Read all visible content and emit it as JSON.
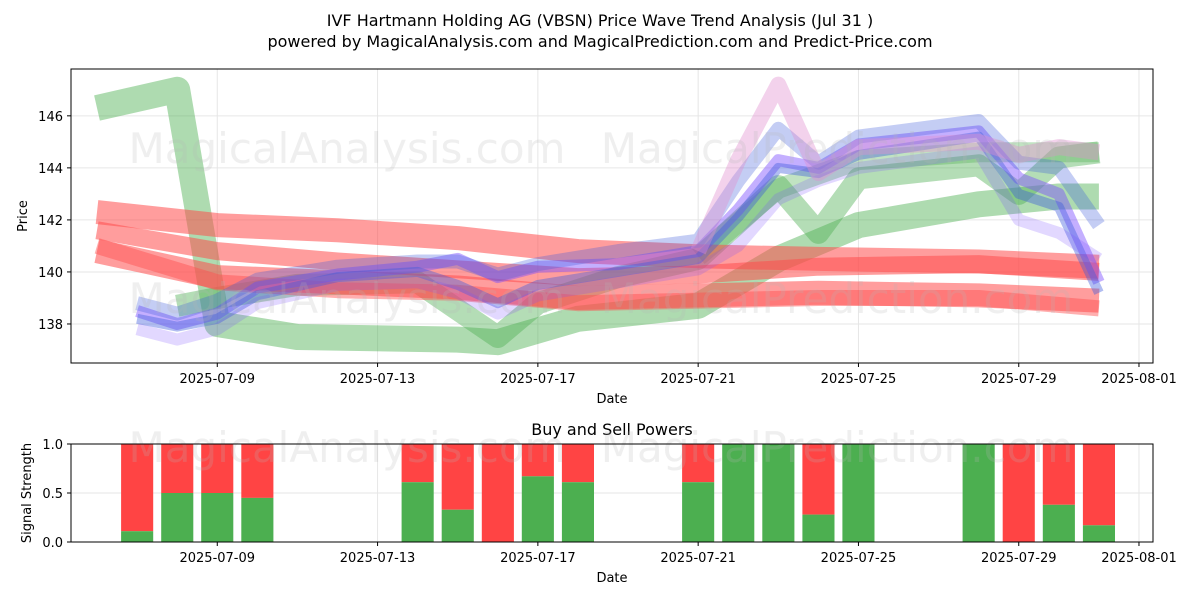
{
  "header": {
    "title": "IVF Hartmann Holding AG (VBSN) Price Wave Trend Analysis (Jul 31 )",
    "subtitle": "powered by MagicalAnalysis.com and MagicalPrediction.com and Predict-Price.com"
  },
  "watermarks": [
    "MagicalAnalysis.com",
    "MagicalPrediction.com"
  ],
  "colors": {
    "green": "#4caf50",
    "red": "#ff4d4d",
    "blue": "#3b5bdb",
    "purple": "#7c4dff",
    "pink": "#e08fd0",
    "sell": "#ff4444",
    "buy": "#4caf50"
  },
  "chart_data": [
    {
      "type": "line",
      "title": "",
      "xlabel": "Date",
      "ylabel": "Price",
      "xlim": [
        "2025-07-05",
        "2025-08-01"
      ],
      "ylim": [
        136.5,
        147.8
      ],
      "xticks": [
        "2025-07-09",
        "2025-07-13",
        "2025-07-17",
        "2025-07-21",
        "2025-07-25",
        "2025-07-29",
        "2025-08-01"
      ],
      "yticks": [
        138,
        140,
        142,
        144,
        146
      ],
      "grid": true,
      "series": [
        {
          "color": "green",
          "width": 26,
          "opacity": 0.45,
          "x": [
            "2025-07-06",
            "2025-07-08",
            "2025-07-09",
            "2025-07-11",
            "2025-07-15",
            "2025-07-16",
            "2025-07-18",
            "2025-07-21",
            "2025-07-23",
            "2025-07-25",
            "2025-07-28",
            "2025-07-30",
            "2025-07-31"
          ],
          "y": [
            146.3,
            147.0,
            138.0,
            137.5,
            137.4,
            137.3,
            138.2,
            138.7,
            140.5,
            141.8,
            142.6,
            142.9,
            142.9
          ]
        },
        {
          "color": "green",
          "width": 22,
          "opacity": 0.42,
          "x": [
            "2025-07-08",
            "2025-07-09",
            "2025-07-11",
            "2025-07-14",
            "2025-07-16",
            "2025-07-17",
            "2025-07-19",
            "2025-07-21",
            "2025-07-22",
            "2025-07-23",
            "2025-07-24",
            "2025-07-25",
            "2025-07-28",
            "2025-07-29",
            "2025-07-30",
            "2025-07-31"
          ],
          "y": [
            138.7,
            139.0,
            139.5,
            139.6,
            137.5,
            138.8,
            139.8,
            140.5,
            141.9,
            143.3,
            141.5,
            143.6,
            144.1,
            143.0,
            144.4,
            144.6
          ]
        },
        {
          "color": "green",
          "width": 20,
          "opacity": 0.35,
          "x": [
            "2025-07-21",
            "2025-07-23",
            "2025-07-25",
            "2025-07-28",
            "2025-07-31"
          ],
          "y": [
            140.6,
            143.2,
            144.3,
            144.6,
            144.6
          ]
        },
        {
          "color": "red",
          "width": 24,
          "opacity": 0.55,
          "x": [
            "2025-07-06",
            "2025-07-09",
            "2025-07-12",
            "2025-07-15",
            "2025-07-18",
            "2025-07-21",
            "2025-07-24",
            "2025-07-28",
            "2025-07-31"
          ],
          "y": [
            142.3,
            141.8,
            141.6,
            141.3,
            140.8,
            140.6,
            140.5,
            140.4,
            140.2
          ]
        },
        {
          "color": "red",
          "width": 24,
          "opacity": 0.55,
          "x": [
            "2025-07-06",
            "2025-07-09",
            "2025-07-12",
            "2025-07-15",
            "2025-07-18",
            "2025-07-21",
            "2025-07-24",
            "2025-07-28",
            "2025-07-31"
          ],
          "y": [
            140.8,
            139.8,
            139.6,
            139.4,
            139.0,
            139.1,
            139.2,
            139.1,
            138.9
          ]
        },
        {
          "color": "red",
          "width": 18,
          "opacity": 0.55,
          "x": [
            "2025-07-06",
            "2025-07-09",
            "2025-07-12",
            "2025-07-15",
            "2025-07-18",
            "2025-07-21",
            "2025-07-24",
            "2025-07-28",
            "2025-07-31"
          ],
          "y": [
            141.6,
            140.8,
            140.4,
            140.1,
            139.8,
            139.9,
            140.2,
            140.3,
            140.0
          ]
        },
        {
          "color": "red",
          "width": 16,
          "opacity": 0.45,
          "x": [
            "2025-07-06",
            "2025-07-09",
            "2025-07-12",
            "2025-07-15",
            "2025-07-18",
            "2025-07-21",
            "2025-07-24",
            "2025-07-28",
            "2025-07-31"
          ],
          "y": [
            141.0,
            139.6,
            139.3,
            139.2,
            138.8,
            138.9,
            139.0,
            139.0,
            138.6
          ]
        },
        {
          "color": "purple",
          "width": 12,
          "opacity": 0.45,
          "x": [
            "2025-07-07",
            "2025-07-08",
            "2025-07-09",
            "2025-07-10",
            "2025-07-12",
            "2025-07-14",
            "2025-07-15",
            "2025-07-16",
            "2025-07-17",
            "2025-07-19",
            "2025-07-21",
            "2025-07-22",
            "2025-07-23",
            "2025-07-24",
            "2025-07-25",
            "2025-07-28",
            "2025-07-29",
            "2025-07-30",
            "2025-07-31"
          ],
          "y": [
            138.5,
            138.0,
            138.4,
            139.4,
            139.9,
            140.2,
            140.5,
            139.8,
            140.2,
            140.3,
            140.8,
            142.4,
            144.3,
            144.0,
            144.9,
            145.4,
            143.6,
            143.0,
            139.6
          ]
        },
        {
          "color": "blue",
          "width": 10,
          "opacity": 0.4,
          "x": [
            "2025-07-07",
            "2025-07-08",
            "2025-07-09",
            "2025-07-10",
            "2025-07-12",
            "2025-07-14",
            "2025-07-15",
            "2025-07-16",
            "2025-07-17",
            "2025-07-19",
            "2025-07-21",
            "2025-07-22",
            "2025-07-23",
            "2025-07-24",
            "2025-07-25",
            "2025-07-28",
            "2025-07-29",
            "2025-07-30",
            "2025-07-31"
          ],
          "y": [
            138.2,
            137.9,
            138.2,
            139.1,
            139.8,
            140.0,
            139.5,
            138.8,
            139.5,
            140.0,
            140.5,
            142.1,
            144.0,
            143.8,
            144.5,
            145.2,
            143.0,
            142.5,
            139.2
          ]
        },
        {
          "color": "blue",
          "width": 14,
          "opacity": 0.3,
          "x": [
            "2025-07-07",
            "2025-07-08",
            "2025-07-09",
            "2025-07-10",
            "2025-07-12",
            "2025-07-14",
            "2025-07-15",
            "2025-07-16",
            "2025-07-17",
            "2025-07-19",
            "2025-07-21",
            "2025-07-22",
            "2025-07-23",
            "2025-07-24",
            "2025-07-25",
            "2025-07-28",
            "2025-07-29",
            "2025-07-30",
            "2025-07-31"
          ],
          "y": [
            138.8,
            138.4,
            138.9,
            139.7,
            140.2,
            140.4,
            140.4,
            139.9,
            140.3,
            140.8,
            141.2,
            143.5,
            145.5,
            144.2,
            145.2,
            145.8,
            144.2,
            144.0,
            141.8
          ]
        },
        {
          "color": "purple",
          "width": 12,
          "opacity": 0.22,
          "x": [
            "2025-07-07",
            "2025-07-08",
            "2025-07-09",
            "2025-07-10",
            "2025-07-12",
            "2025-07-14",
            "2025-07-15",
            "2025-07-16",
            "2025-07-17",
            "2025-07-19",
            "2025-07-21",
            "2025-07-22",
            "2025-07-23",
            "2025-07-24",
            "2025-07-25",
            "2025-07-28",
            "2025-07-29",
            "2025-07-30",
            "2025-07-31"
          ],
          "y": [
            137.8,
            137.4,
            137.8,
            138.8,
            139.5,
            139.6,
            139.2,
            138.4,
            139.1,
            139.6,
            140.1,
            141.0,
            142.8,
            143.5,
            144.0,
            144.6,
            142.0,
            141.5,
            140.5
          ]
        },
        {
          "color": "pink",
          "width": 16,
          "opacity": 0.4,
          "x": [
            "2025-07-21",
            "2025-07-22",
            "2025-07-23",
            "2025-07-24",
            "2025-07-25",
            "2025-07-28",
            "2025-07-29",
            "2025-07-30",
            "2025-07-31"
          ],
          "y": [
            140.8,
            144.3,
            147.2,
            143.8,
            144.8,
            145.0,
            144.5,
            144.8,
            144.6
          ]
        }
      ]
    },
    {
      "type": "bar",
      "title": "Buy and Sell Powers",
      "xlabel": "Date",
      "ylabel": "Signal Strength",
      "xlim": [
        "2025-07-05",
        "2025-08-01"
      ],
      "ylim": [
        0,
        1.0
      ],
      "xticks": [
        "2025-07-09",
        "2025-07-13",
        "2025-07-17",
        "2025-07-21",
        "2025-07-25",
        "2025-07-29",
        "2025-08-01"
      ],
      "yticks": [
        "0.0",
        "0.5",
        "1.0"
      ],
      "grid": true,
      "bars": [
        {
          "x": "2025-07-07",
          "buy": 0.11
        },
        {
          "x": "2025-07-08",
          "buy": 0.5
        },
        {
          "x": "2025-07-09",
          "buy": 0.5
        },
        {
          "x": "2025-07-10",
          "buy": 0.45
        },
        {
          "x": "2025-07-14",
          "buy": 0.61
        },
        {
          "x": "2025-07-15",
          "buy": 0.33
        },
        {
          "x": "2025-07-16",
          "buy": 0.0
        },
        {
          "x": "2025-07-17",
          "buy": 0.67
        },
        {
          "x": "2025-07-18",
          "buy": 0.61
        },
        {
          "x": "2025-07-21",
          "buy": 0.61
        },
        {
          "x": "2025-07-22",
          "buy": 1.0
        },
        {
          "x": "2025-07-23",
          "buy": 1.0
        },
        {
          "x": "2025-07-24",
          "buy": 0.28
        },
        {
          "x": "2025-07-25",
          "buy": 1.0
        },
        {
          "x": "2025-07-28",
          "buy": 1.0
        },
        {
          "x": "2025-07-29",
          "buy": 0.0
        },
        {
          "x": "2025-07-30",
          "buy": 0.38
        },
        {
          "x": "2025-07-31",
          "buy": 0.17
        }
      ]
    }
  ]
}
